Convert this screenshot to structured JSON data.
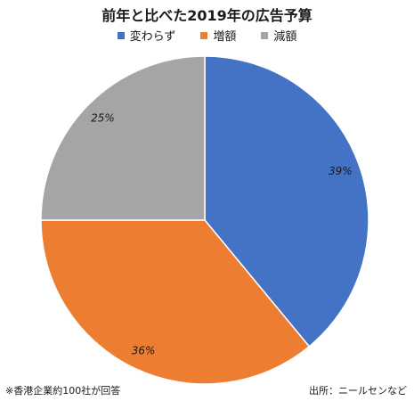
{
  "chart_data": {
    "type": "pie",
    "title": "前年と比べた2019年の広告予算",
    "categories": [
      "変わらず",
      "増額",
      "減額"
    ],
    "values": [
      39,
      36,
      25
    ],
    "labels": [
      "39%",
      "36%",
      "25%"
    ],
    "colors": [
      "#4472C4",
      "#ED7D31",
      "#A5A5A5"
    ],
    "legend": "top"
  },
  "notes": {
    "left": "※香港企業約100社が回答",
    "right": "出所：ニールセンなど"
  }
}
